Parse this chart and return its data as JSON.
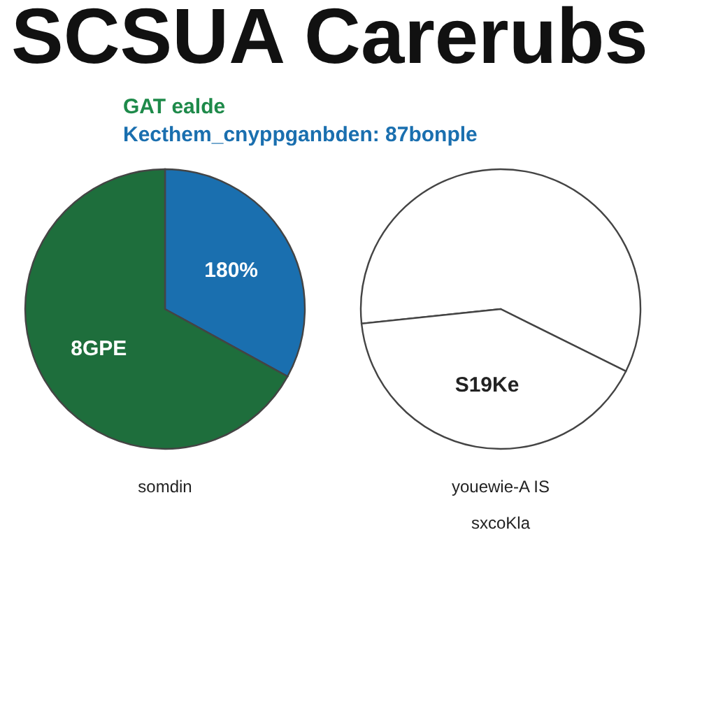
{
  "chart_data": [
    {
      "type": "pie",
      "title": "SCSUA Carerubs",
      "subtitle": "GAT ealde",
      "annotations": [
        "Kecthem_cnyppganbden: 87bonple",
        "180%",
        "8GPE"
      ],
      "xlabel": "somdin",
      "categories": [
        null,
        null
      ],
      "values": [
        33,
        67
      ],
      "colors": [
        "#1a6faf",
        "#1e6e3c"
      ]
    },
    {
      "type": "pie",
      "xlabel": "sxcoKla",
      "annotations": [
        "youewie-A IS"
      ],
      "categories": [
        null,
        null
      ],
      "values": [
        59,
        41
      ],
      "colors": [
        "#ffffff",
        "#ffffff"
      ],
      "value_labels": [
        null,
        "S19Ke"
      ]
    }
  ]
}
